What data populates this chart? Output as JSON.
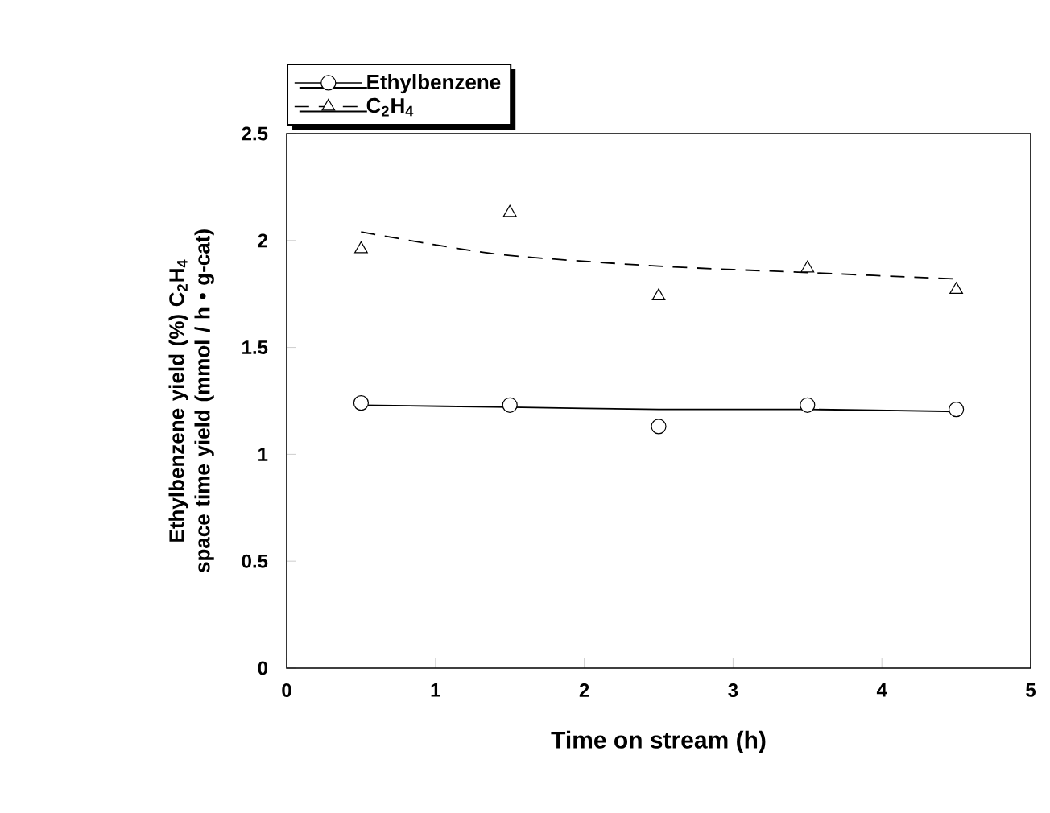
{
  "chart_data": {
    "type": "scatter",
    "xlabel": "Time on stream (h)",
    "ylabel": "Ethylbenzene yield (%) C$_{2}$H$_{4}$ space time yield (mmol / h • g-cat)",
    "xlim": [
      0,
      5
    ],
    "xticks": [
      0,
      1,
      2,
      3,
      4,
      5
    ],
    "ylim": [
      0,
      2.5
    ],
    "yticks": [
      0,
      0.5,
      1,
      1.5,
      2,
      2.5
    ],
    "grid": false,
    "legend": "top left",
    "series": [
      {
        "name": "Ethylbenzene",
        "type": "scatter",
        "marker": "circle",
        "line_style": "solid",
        "color": "#000000",
        "x": [
          0.5,
          1.5,
          2.5,
          3.5,
          4.5
        ],
        "values": [
          1.24,
          1.23,
          1.13,
          1.23,
          1.21
        ]
      },
      {
        "name": "C$_{2}$H$_{4}$",
        "type": "scatter",
        "marker": "triangle",
        "line_style": "dashed",
        "color": "#000000",
        "x": [
          0.5,
          1.5,
          2.5,
          3.5,
          4.5
        ],
        "values": [
          1.96,
          2.13,
          1.74,
          1.87,
          1.77
        ]
      },
      {
        "type": "line",
        "marker": "none",
        "line_style": "solid",
        "color": "#000000",
        "x": [
          0.5,
          1.5,
          2.5,
          3.5,
          4.5
        ],
        "values": [
          1.23,
          1.22,
          1.21,
          1.21,
          1.2
        ]
      },
      {
        "type": "line",
        "marker": "none",
        "line_style": "dashed",
        "color": "#000000",
        "x": [
          0.5,
          1,
          1.5,
          2.5,
          3.5,
          4.5
        ],
        "values": [
          2.04,
          1.98,
          1.93,
          1.88,
          1.85,
          1.82
        ]
      }
    ]
  }
}
